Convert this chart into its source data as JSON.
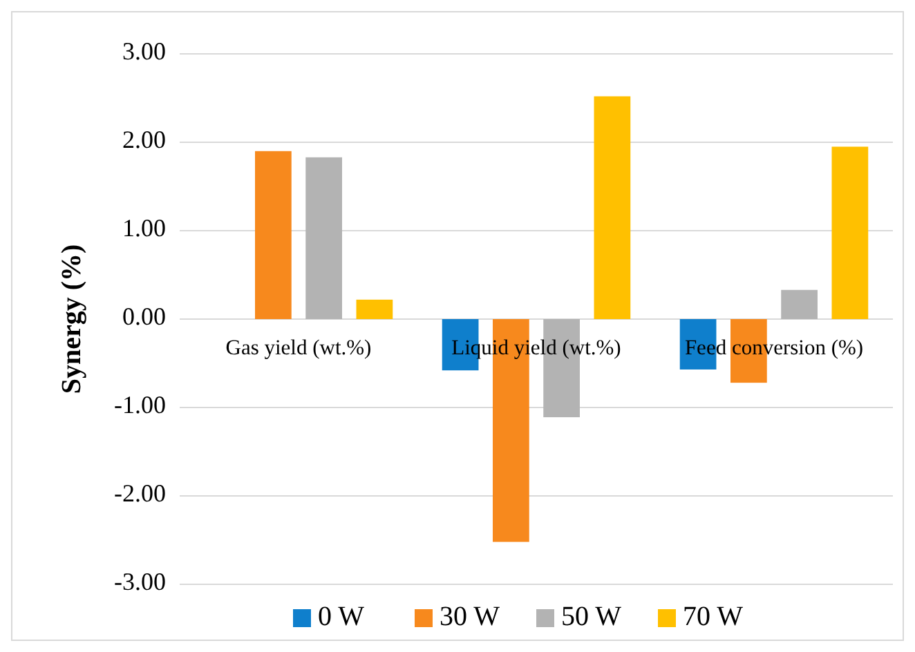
{
  "chart_data": {
    "type": "bar",
    "ylabel": "Synergy (%)",
    "categories": [
      "Gas yield (wt.%)",
      "Liquid yield (wt.%)",
      "Feed conversion (%)"
    ],
    "series": [
      {
        "name": "0 W",
        "color": "#0f7fcc",
        "values": [
          0,
          -0.58,
          -0.57
        ]
      },
      {
        "name": "30 W",
        "color": "#f7891d",
        "values": [
          1.9,
          -2.52,
          -0.72
        ]
      },
      {
        "name": "50 W",
        "color": "#b3b3b3",
        "values": [
          1.83,
          -1.11,
          0.33
        ]
      },
      {
        "name": "70 W",
        "color": "#ffc000",
        "values": [
          0.22,
          2.52,
          1.95
        ]
      }
    ],
    "ylim": [
      -3,
      3
    ],
    "yticks": [
      {
        "value": -3,
        "label": "-3.00"
      },
      {
        "value": -2,
        "label": "-2.00"
      },
      {
        "value": -1,
        "label": "-1.00"
      },
      {
        "value": 0,
        "label": "0.00"
      },
      {
        "value": 1,
        "label": "1.00"
      },
      {
        "value": 2,
        "label": "2.00"
      },
      {
        "value": 3,
        "label": "3.00"
      }
    ],
    "grid": "y",
    "legend": "bottom"
  }
}
